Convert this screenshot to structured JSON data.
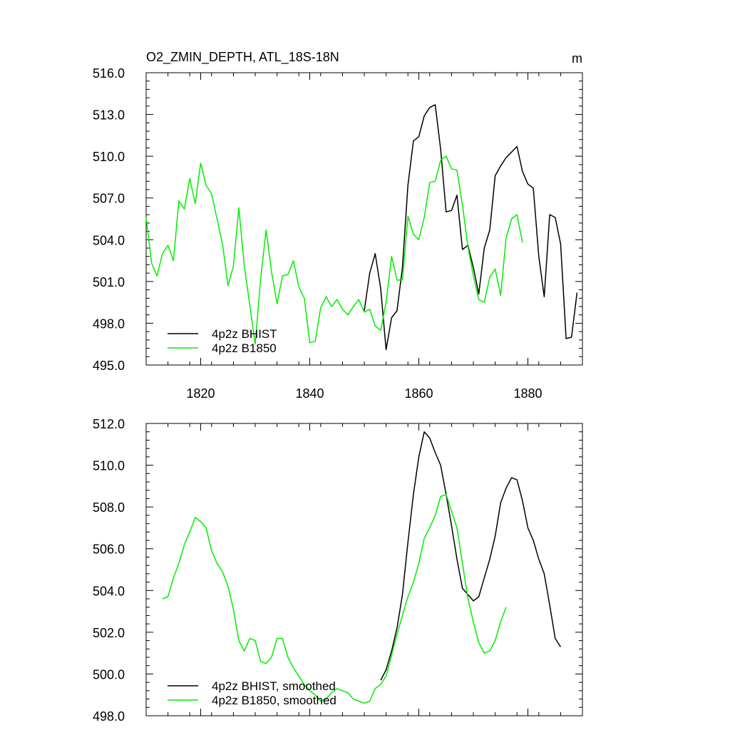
{
  "chart_data": [
    {
      "type": "line",
      "title": "O2_ZMIN_DEPTH, ATL_18S-18N",
      "units": "m",
      "xlim": [
        1810,
        1890
      ],
      "ylim": [
        495,
        516
      ],
      "xticks": [
        1820,
        1840,
        1860,
        1880
      ],
      "xtick_labels": [
        "1820",
        "1840",
        "1860",
        "1880"
      ],
      "yticks": [
        495,
        498,
        501,
        504,
        507,
        510,
        513,
        516
      ],
      "ytick_labels": [
        "495.0",
        "498.0",
        "501.0",
        "504.0",
        "507.0",
        "510.0",
        "513.0",
        "516.0"
      ],
      "grid": false,
      "legend_position": "bottom-left",
      "series": [
        {
          "name": "4p2z BHIST",
          "color": "#000000",
          "x": [
            1850,
            1851,
            1852,
            1853,
            1854,
            1855,
            1856,
            1857,
            1858,
            1859,
            1860,
            1861,
            1862,
            1863,
            1864,
            1865,
            1866,
            1867,
            1868,
            1869,
            1870,
            1871,
            1872,
            1873,
            1874,
            1875,
            1876,
            1877,
            1878,
            1879,
            1880,
            1881,
            1882,
            1883,
            1884,
            1885,
            1886,
            1887,
            1888,
            1889
          ],
          "y": [
            498.9,
            501.6,
            503.0,
            500.5,
            496.1,
            498.4,
            498.9,
            502.0,
            507.9,
            511.1,
            511.4,
            512.9,
            513.5,
            513.7,
            510.5,
            506.0,
            506.1,
            507.2,
            503.3,
            503.6,
            502.0,
            500.1,
            503.4,
            504.7,
            508.6,
            509.3,
            509.9,
            510.3,
            510.7,
            508.9,
            508.0,
            507.7,
            502.8,
            499.9,
            505.8,
            505.6,
            503.7,
            496.9,
            497.0,
            500.2
          ]
        },
        {
          "name": "4p2z B1850",
          "color": "#00ee00",
          "x": [
            1810,
            1811,
            1812,
            1813,
            1814,
            1815,
            1816,
            1817,
            1818,
            1819,
            1820,
            1821,
            1822,
            1823,
            1824,
            1825,
            1826,
            1827,
            1828,
            1829,
            1830,
            1831,
            1832,
            1833,
            1834,
            1835,
            1836,
            1837,
            1838,
            1839,
            1840,
            1841,
            1842,
            1843,
            1844,
            1845,
            1846,
            1847,
            1848,
            1849,
            1850,
            1851,
            1852,
            1853,
            1854,
            1855,
            1856,
            1857,
            1858,
            1859,
            1860,
            1861,
            1862,
            1863,
            1864,
            1865,
            1866,
            1867,
            1868,
            1869,
            1870,
            1871,
            1872,
            1873,
            1874,
            1875,
            1876,
            1877,
            1878,
            1879
          ],
          "y": [
            505.6,
            502.3,
            501.4,
            503.0,
            503.6,
            502.5,
            506.8,
            506.2,
            508.4,
            506.6,
            509.5,
            507.9,
            507.3,
            505.5,
            503.7,
            500.7,
            502.1,
            506.3,
            502.1,
            499.3,
            496.5,
            501.2,
            504.7,
            501.7,
            499.4,
            501.4,
            501.5,
            502.5,
            500.6,
            499.8,
            496.6,
            496.7,
            499.1,
            499.9,
            499.2,
            499.7,
            499.0,
            498.6,
            499.2,
            499.7,
            498.8,
            499.0,
            497.8,
            497.5,
            499.5,
            502.8,
            501.1,
            501.1,
            505.7,
            504.4,
            504.0,
            505.6,
            508.1,
            508.2,
            509.7,
            510.0,
            509.1,
            509.0,
            506.5,
            503.5,
            501.4,
            499.7,
            499.5,
            501.3,
            501.9,
            500.0,
            504.1,
            505.5,
            505.8,
            503.8
          ]
        }
      ]
    },
    {
      "type": "line",
      "title": "",
      "xlim": [
        1810,
        1890
      ],
      "ylim": [
        498,
        512
      ],
      "xticks": [
        1820,
        1840,
        1860,
        1880
      ],
      "yticks": [
        498,
        500,
        502,
        504,
        506,
        508,
        510,
        512
      ],
      "ytick_labels": [
        "498.0",
        "500.0",
        "502.0",
        "504.0",
        "506.0",
        "508.0",
        "510.0",
        "512.0"
      ],
      "grid": false,
      "legend_position": "bottom-left",
      "series": [
        {
          "name": "4p2z BHIST, smoothed",
          "color": "#000000",
          "x": [
            1853,
            1854,
            1855,
            1856,
            1857,
            1858,
            1859,
            1860,
            1861,
            1862,
            1863,
            1864,
            1865,
            1866,
            1867,
            1868,
            1869,
            1870,
            1871,
            1872,
            1873,
            1874,
            1875,
            1876,
            1877,
            1878,
            1879,
            1880,
            1881,
            1882,
            1883,
            1884,
            1885,
            1886
          ],
          "y": [
            499.7,
            500.2,
            501.1,
            502.2,
            503.8,
            506.3,
            508.6,
            510.4,
            511.6,
            511.3,
            510.6,
            510.0,
            508.6,
            507.1,
            505.5,
            504.1,
            503.8,
            503.5,
            503.7,
            504.6,
            505.5,
            506.6,
            508.2,
            508.9,
            509.4,
            509.3,
            508.3,
            507.0,
            506.4,
            505.5,
            504.8,
            503.3,
            501.7,
            501.3
          ]
        },
        {
          "name": "4p2z B1850, smoothed",
          "color": "#00ee00",
          "x": [
            1813,
            1814,
            1815,
            1816,
            1817,
            1818,
            1819,
            1820,
            1821,
            1822,
            1823,
            1824,
            1825,
            1826,
            1827,
            1828,
            1829,
            1830,
            1831,
            1832,
            1833,
            1834,
            1835,
            1836,
            1837,
            1838,
            1839,
            1840,
            1841,
            1842,
            1843,
            1844,
            1845,
            1846,
            1847,
            1848,
            1849,
            1850,
            1851,
            1852,
            1853,
            1854,
            1855,
            1856,
            1857,
            1858,
            1859,
            1860,
            1861,
            1862,
            1863,
            1864,
            1865,
            1866,
            1867,
            1868,
            1869,
            1870,
            1871,
            1872,
            1873,
            1874,
            1875,
            1876
          ],
          "y": [
            503.6,
            503.7,
            504.6,
            505.3,
            506.2,
            506.8,
            507.5,
            507.3,
            507.0,
            505.9,
            505.3,
            504.9,
            504.2,
            503.1,
            501.6,
            501.1,
            501.7,
            501.6,
            500.6,
            500.5,
            500.8,
            501.7,
            501.7,
            500.8,
            500.3,
            499.9,
            499.5,
            499.2,
            499.0,
            498.7,
            498.8,
            499.1,
            499.3,
            499.2,
            499.1,
            498.8,
            498.7,
            498.6,
            498.7,
            499.3,
            499.5,
            499.9,
            500.9,
            501.9,
            502.8,
            503.7,
            504.4,
            505.3,
            506.5,
            507.0,
            507.6,
            508.5,
            508.6,
            507.8,
            507.0,
            505.3,
            503.6,
            502.5,
            501.5,
            501.0,
            501.1,
            501.6,
            502.5,
            503.2
          ]
        }
      ]
    }
  ]
}
